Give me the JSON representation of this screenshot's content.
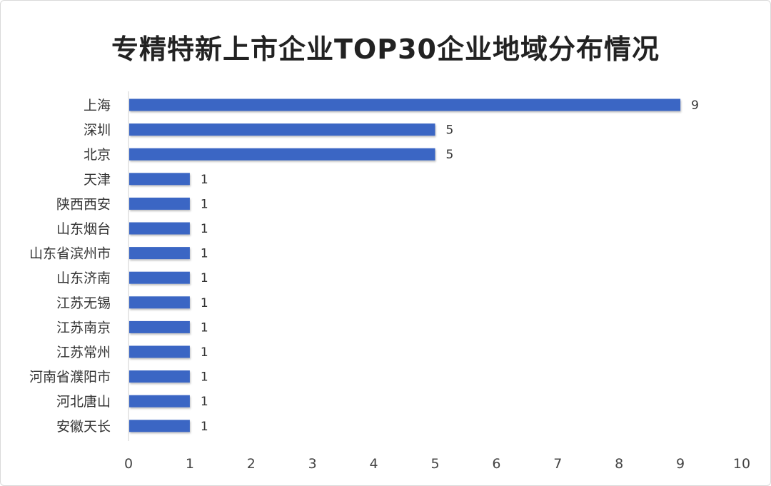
{
  "chart_data": {
    "type": "bar",
    "orientation": "horizontal",
    "title": "专精特新上市企业TOP30企业地域分布情况",
    "categories": [
      "上海",
      "深圳",
      "北京",
      "天津",
      "陕西西安",
      "山东烟台",
      "山东省滨州市",
      "山东济南",
      "江苏无锡",
      "江苏南京",
      "江苏常州",
      "河南省濮阳市",
      "河北唐山",
      "安徽天长"
    ],
    "values": [
      9,
      5,
      5,
      1,
      1,
      1,
      1,
      1,
      1,
      1,
      1,
      1,
      1,
      1
    ],
    "xlim": [
      0,
      10
    ],
    "xticks": [
      "0",
      "1",
      "2",
      "3",
      "4",
      "5",
      "6",
      "7",
      "8",
      "9",
      "10"
    ],
    "grid": false,
    "data_labels": true,
    "bar_color": "#3a66c4"
  }
}
